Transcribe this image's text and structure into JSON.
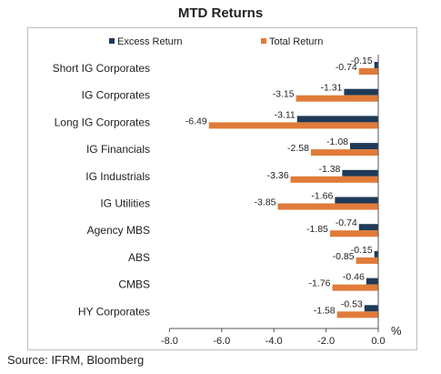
{
  "chart_data": {
    "type": "bar",
    "orientation": "horizontal",
    "title": "MTD Returns",
    "categories": [
      "Short IG Corporates",
      "IG Corporates",
      "Long IG Corporates",
      "IG Financials",
      "IG Industrials",
      "IG Utilities",
      "Agency MBS",
      "ABS",
      "CMBS",
      "HY Corporates"
    ],
    "series": [
      {
        "name": "Excess Return",
        "color": "#1f3a57",
        "values": [
          -0.15,
          -1.31,
          -3.11,
          -1.08,
          -1.38,
          -1.66,
          -0.74,
          -0.15,
          -0.46,
          -0.53
        ],
        "labels": [
          "-0.15",
          "-1.31",
          "-3.11",
          "-1.08",
          "-1.38",
          "-1.66",
          "-0.74",
          "-0.15",
          "-0.46",
          "-0.53"
        ]
      },
      {
        "name": "Total Return",
        "color": "#e07b39",
        "values": [
          -0.74,
          -3.15,
          -6.49,
          -2.58,
          -3.36,
          -3.85,
          -1.85,
          -0.85,
          -1.76,
          -1.58
        ],
        "labels": [
          "-0.74",
          "-3.15",
          "-6.49",
          "-2.58",
          "-3.36",
          "-3.85",
          "-1.85",
          "-0.85",
          "-1.76",
          "-1.58"
        ]
      }
    ],
    "xlim": [
      -8.0,
      0.0
    ],
    "xticks": [
      "-8.0",
      "-6.0",
      "-4.0",
      "-2.0",
      "0.0"
    ],
    "xlabel": "%",
    "legend_position": "top",
    "grid": false
  },
  "source": "Source: IFRM, Bloomberg"
}
